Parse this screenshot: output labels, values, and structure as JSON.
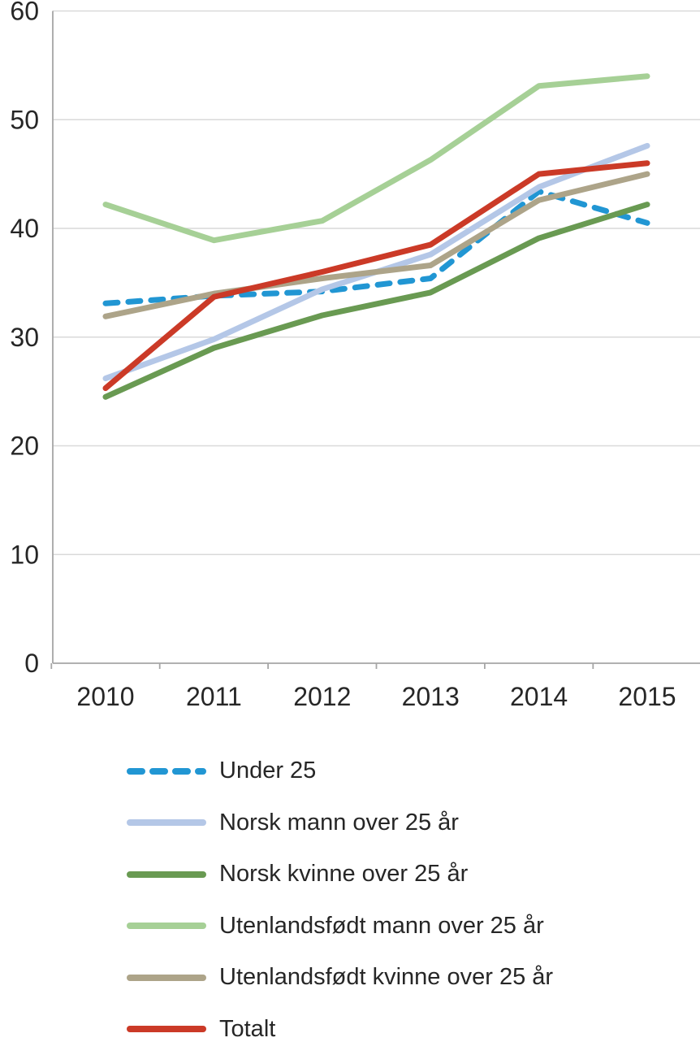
{
  "chart_data": {
    "type": "line",
    "title": "",
    "categories": [
      "2010",
      "2011",
      "2012",
      "2013",
      "2014",
      "2015"
    ],
    "series": [
      {
        "name": "Under 25",
        "color": "#2196d3",
        "dashed": true,
        "values": [
          33.1,
          33.8,
          34.2,
          35.4,
          43.4,
          40.5
        ]
      },
      {
        "name": "Norsk mann over 25 år",
        "color": "#b4c7e7",
        "dashed": false,
        "values": [
          26.2,
          29.8,
          34.4,
          37.6,
          43.8,
          47.6
        ]
      },
      {
        "name": "Norsk kvinne over 25 år",
        "color": "#699a52",
        "dashed": false,
        "values": [
          24.5,
          29.0,
          32.0,
          34.1,
          39.1,
          42.2
        ]
      },
      {
        "name": "Utenlandsfødt mann over 25 år",
        "color": "#a6d096",
        "dashed": false,
        "values": [
          42.2,
          38.9,
          40.7,
          46.3,
          53.1,
          54.0
        ]
      },
      {
        "name": "Utenlandsfødt kvinne over 25 år",
        "color": "#ada489",
        "dashed": false,
        "values": [
          31.9,
          34.0,
          35.4,
          36.6,
          42.6,
          45.0
        ]
      },
      {
        "name": "Totalt",
        "color": "#cb3a27",
        "dashed": false,
        "values": [
          25.3,
          33.7,
          36.0,
          38.5,
          45.0,
          46.0
        ]
      }
    ],
    "y_tick_labels": [
      "0",
      "10",
      "20",
      "30",
      "40",
      "50",
      "60"
    ],
    "ylim": [
      0,
      60
    ],
    "ytick_step": 10,
    "grid": true,
    "legend_position": "bottom"
  },
  "colors": {
    "gridline": "#d9d9d9",
    "axis": "#a6a6a6",
    "text": "#262626"
  }
}
